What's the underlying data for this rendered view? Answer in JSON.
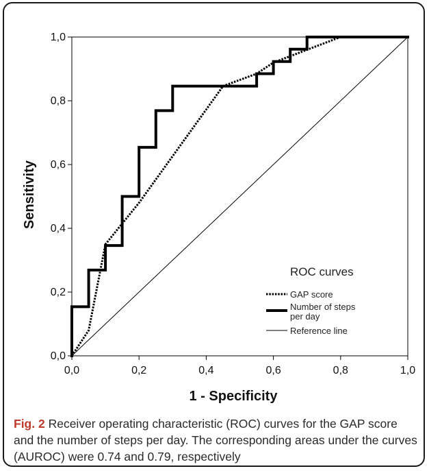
{
  "chart_data": {
    "type": "line",
    "xlabel": "1 - Specificity",
    "ylabel": "Sensitivity",
    "xlim": [
      0,
      1
    ],
    "ylim": [
      0,
      1
    ],
    "x_ticks": [
      "0,0",
      "0,2",
      "0,4",
      "0,6",
      "0,8",
      "1,0"
    ],
    "y_ticks": [
      "0,0",
      "0,2",
      "0,4",
      "0,6",
      "0,8",
      "1,0"
    ],
    "x_tick_values": [
      0,
      0.2,
      0.4,
      0.6,
      0.8,
      1.0
    ],
    "y_tick_values": [
      0,
      0.2,
      0.4,
      0.6,
      0.8,
      1.0
    ],
    "grid": false,
    "legend_position": "bottom-right",
    "legend_title": "ROC curves",
    "series": [
      {
        "name": "GAP score",
        "style": "dotted",
        "x": [
          0,
          0.05,
          0.1,
          0.2,
          0.45,
          0.55,
          0.6,
          0.7,
          0.8,
          1.0
        ],
        "y": [
          0,
          0.08,
          0.35,
          0.48,
          0.846,
          0.885,
          0.92,
          0.96,
          1.0,
          1.0
        ]
      },
      {
        "name": "Number of steps per day",
        "style": "thick",
        "x": [
          0,
          0,
          0.05,
          0.05,
          0.1,
          0.1,
          0.15,
          0.15,
          0.2,
          0.2,
          0.25,
          0.25,
          0.3,
          0.3,
          0.55,
          0.55,
          0.6,
          0.6,
          0.65,
          0.65,
          0.7,
          0.7,
          1.0
        ],
        "y": [
          0,
          0.154,
          0.154,
          0.269,
          0.269,
          0.346,
          0.346,
          0.5,
          0.5,
          0.654,
          0.654,
          0.769,
          0.769,
          0.846,
          0.846,
          0.885,
          0.885,
          0.923,
          0.923,
          0.962,
          0.962,
          1.0,
          1.0
        ]
      },
      {
        "name": "Reference line",
        "style": "thin",
        "x": [
          0,
          1
        ],
        "y": [
          0,
          1
        ]
      }
    ]
  },
  "legend": {
    "title": "ROC curves",
    "gap_label": "GAP score",
    "steps_label_line1": "Number of steps",
    "steps_label_line2": "per day",
    "reference_label": "Reference line"
  },
  "caption": {
    "label": "Fig. 2",
    "text": "Receiver operating characteristic (ROC) curves for the GAP score and the number of steps per day. The corresponding areas under the curves (AUROC) were 0.74 and 0.79, respectively"
  },
  "colors": {
    "line": "#000000",
    "caption_label": "#c0392b",
    "frame": "#1a1a1a"
  }
}
